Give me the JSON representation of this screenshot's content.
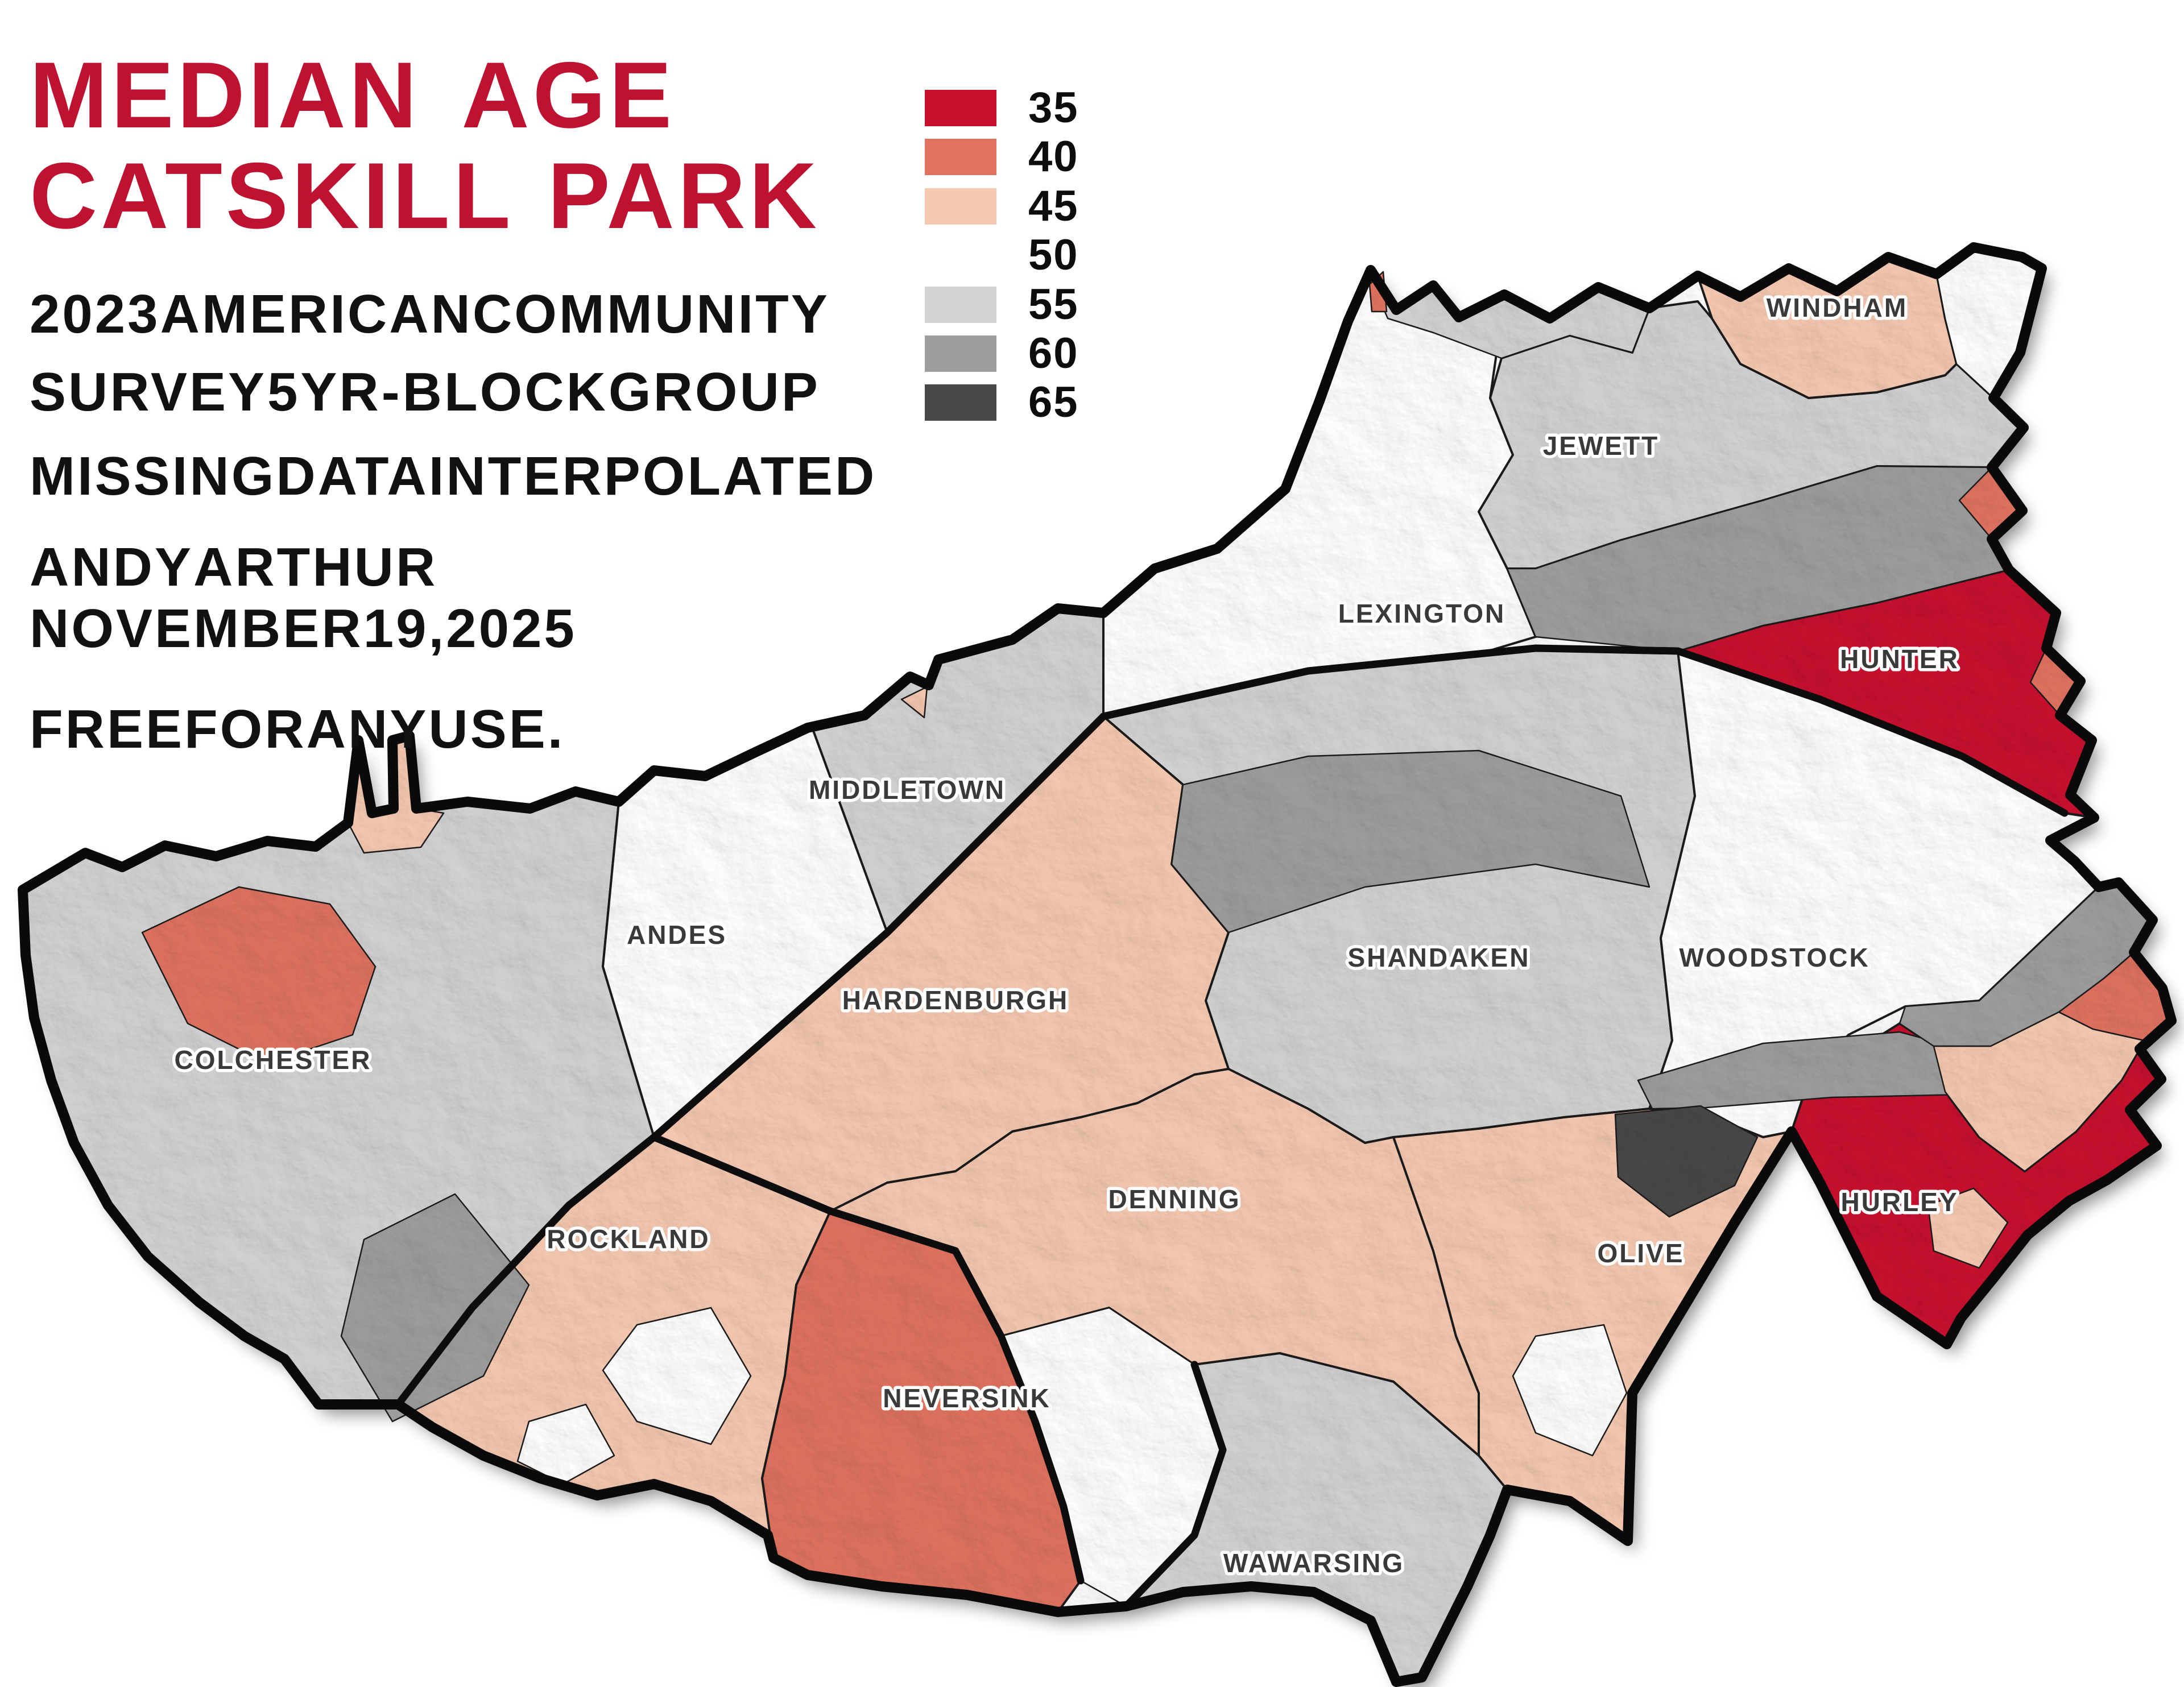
{
  "title": {
    "line1": "MEDIAN AGE",
    "line2": "CATSKILL PARK",
    "color": "#BE1230"
  },
  "subtitle": {
    "line1": "2023 AMERICAN COMMUNITY",
    "line2": "SURVEY 5 YR - BLOCK GROUP"
  },
  "note": "MISSING DATA INTERPOLATED",
  "credit": {
    "line1": "ANDY ARTHUR",
    "line2": "NOVEMBER 19, 2025"
  },
  "license": "FREE FOR ANY USE.",
  "legend": {
    "entries": [
      {
        "label": "35",
        "color": "#C8102E"
      },
      {
        "label": "40",
        "color": "#E0735F"
      },
      {
        "label": "45",
        "color": "#F6C9B1"
      },
      {
        "label": "50",
        "color": "#FFFFFF"
      },
      {
        "label": "55",
        "color": "#D3D3D3"
      },
      {
        "label": "60",
        "color": "#9E9E9E"
      },
      {
        "label": "65",
        "color": "#484848"
      }
    ]
  },
  "map": {
    "border_color": "#0a0a0a",
    "label_color": "#3a3a3a",
    "label_halo": "#ffffff",
    "towns": [
      {
        "label": "WINDHAM",
        "value": "45"
      },
      {
        "label": "JEWETT",
        "value": "55"
      },
      {
        "label": "LEXINGTON",
        "value": "50"
      },
      {
        "label": "HUNTER",
        "value": "35"
      },
      {
        "label": "MIDDLETOWN",
        "value": "55"
      },
      {
        "label": "ANDES",
        "value": "50"
      },
      {
        "label": "SHANDAKEN",
        "value": "55"
      },
      {
        "label": "WOODSTOCK",
        "value": "50"
      },
      {
        "label": "HARDENBURGH",
        "value": "45"
      },
      {
        "label": "COLCHESTER",
        "value": "55"
      },
      {
        "label": "DENNING",
        "value": "45"
      },
      {
        "label": "ROCKLAND",
        "value": "45"
      },
      {
        "label": "OLIVE",
        "value": "45"
      },
      {
        "label": "HURLEY",
        "value": "35"
      },
      {
        "label": "NEVERSINK",
        "value": "40"
      },
      {
        "label": "WAWARSING",
        "value": "55"
      }
    ]
  }
}
